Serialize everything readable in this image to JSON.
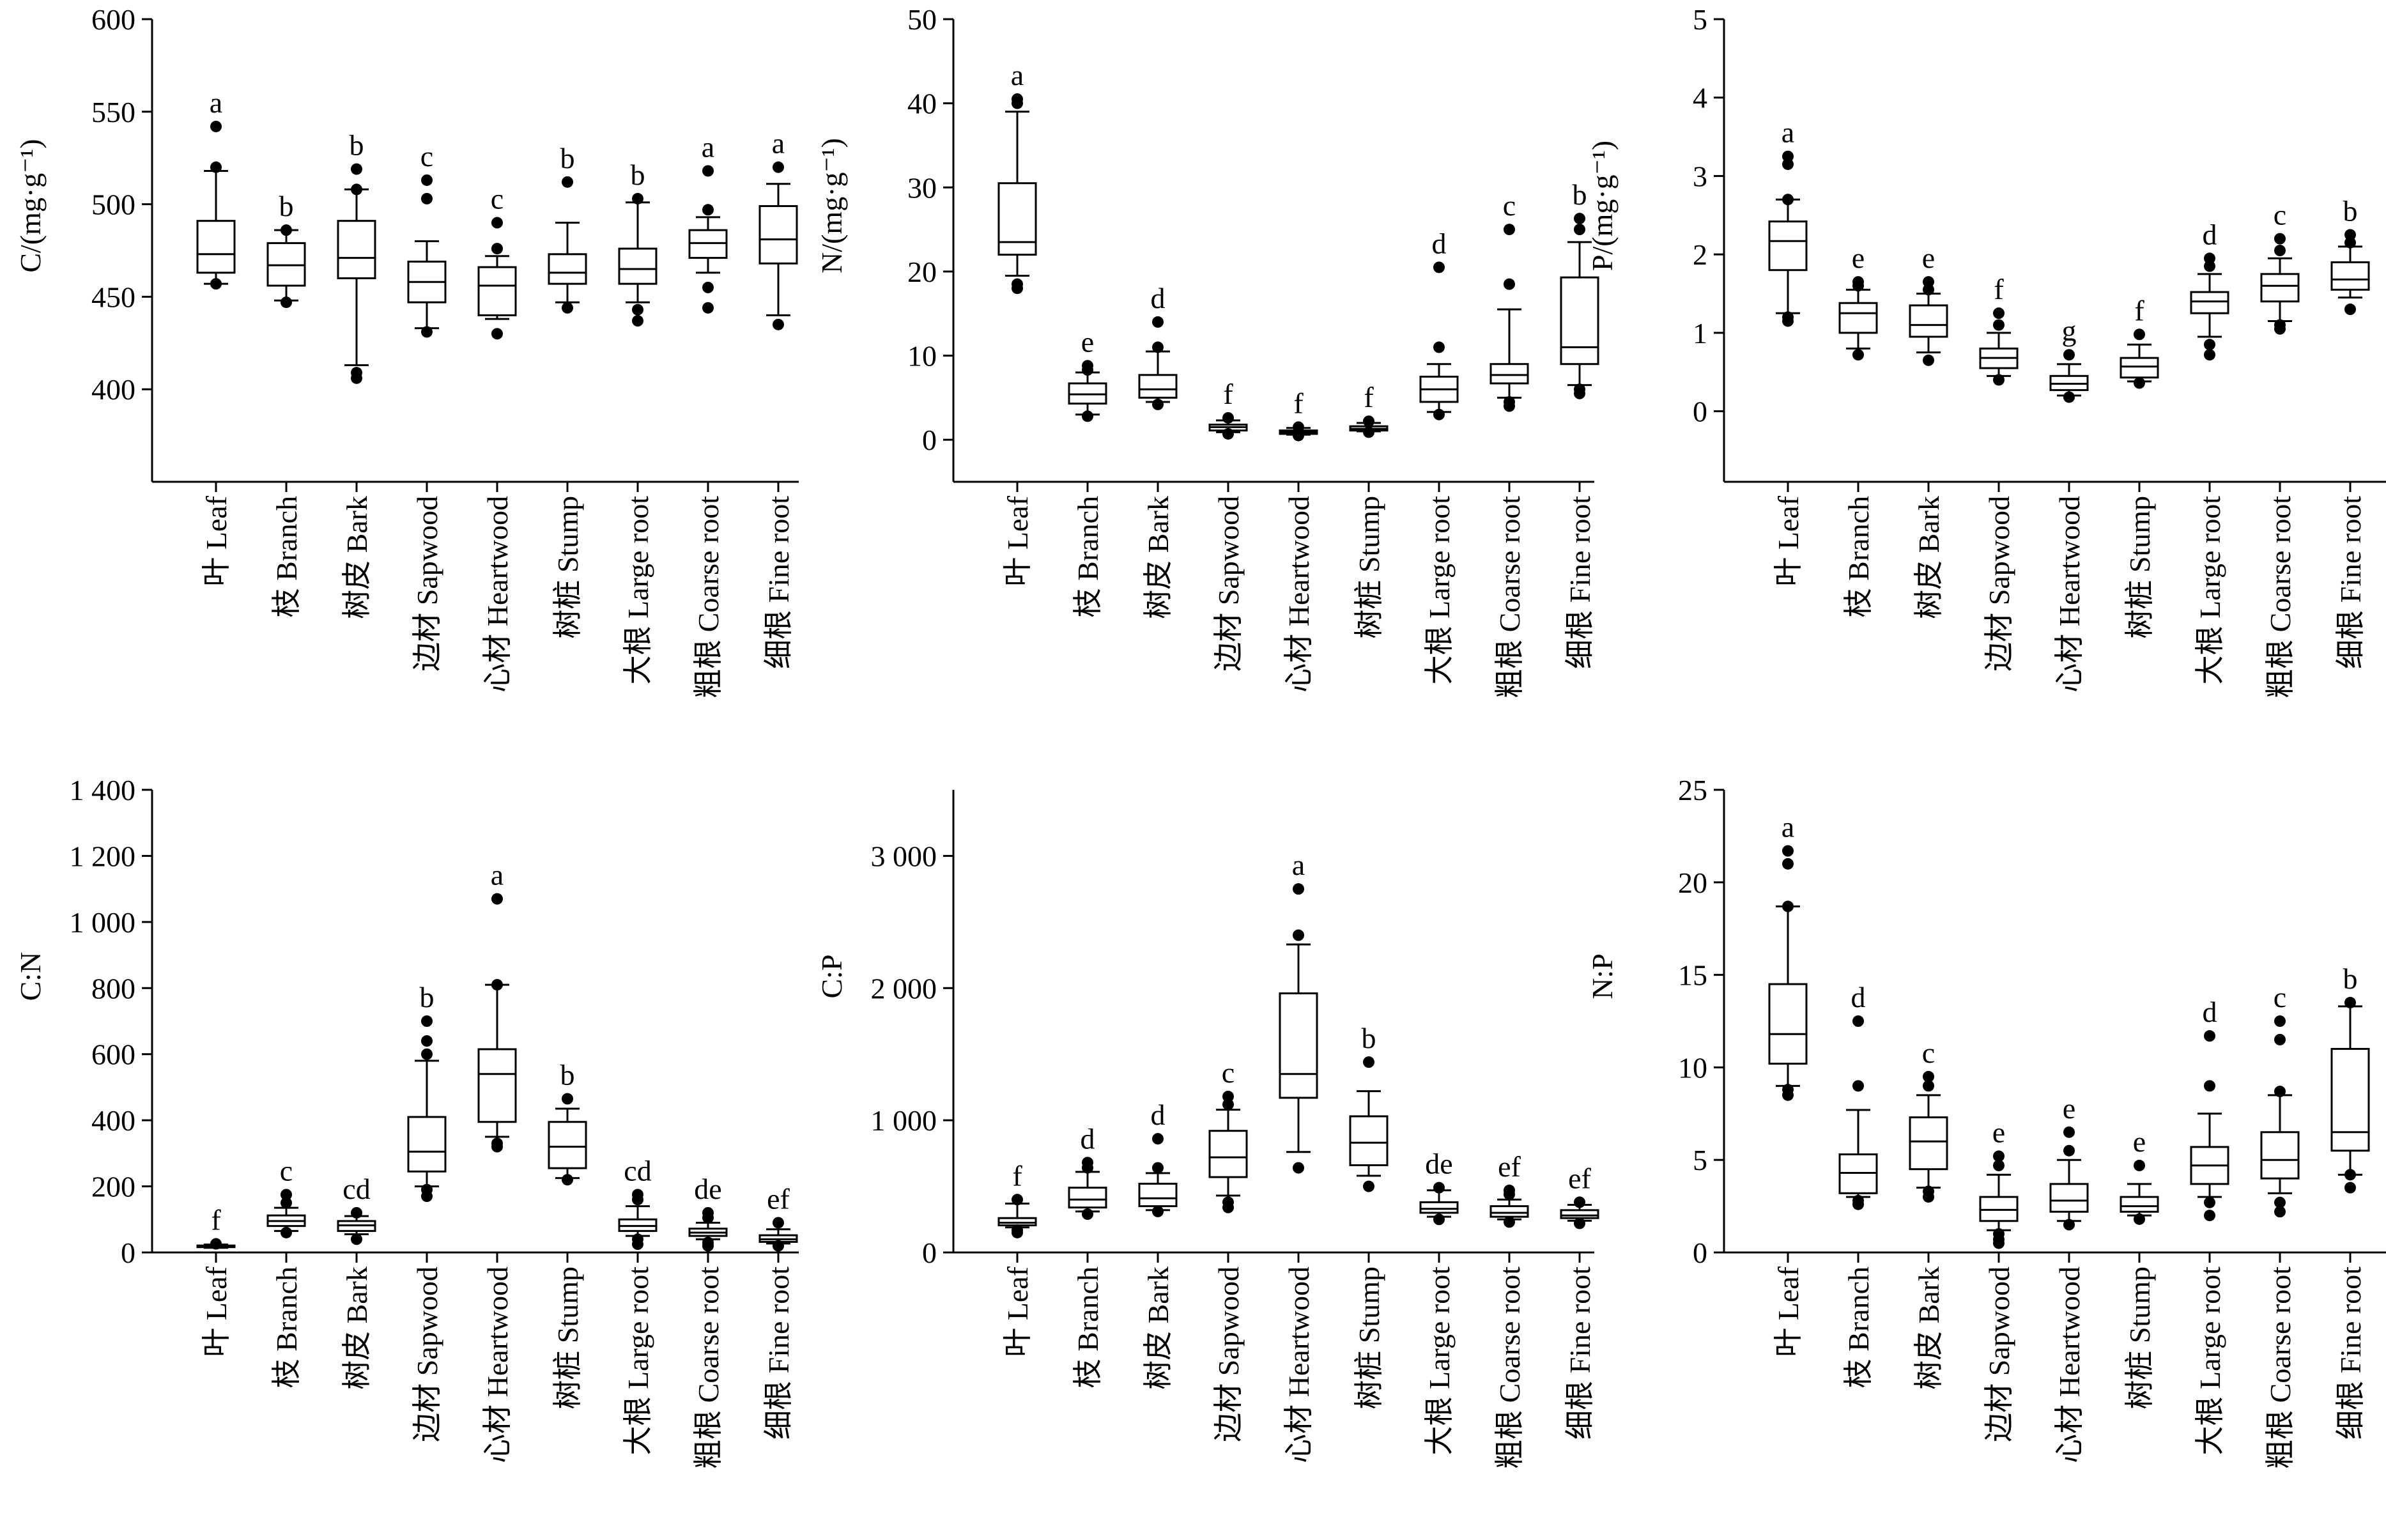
{
  "categories": [
    "叶 Leaf",
    "枝 Branch",
    "树皮 Bark",
    "边材 Sapwood",
    "心材 Heartwood",
    "树桩 Stump",
    "大根 Large root",
    "粗根 Coarse root",
    "细根 Fine root"
  ],
  "chart_data": [
    {
      "type": "box",
      "ylabel": "C/(mg·g⁻¹)",
      "ylim": [
        350,
        600
      ],
      "ticks": [
        400,
        450,
        500,
        550,
        600
      ],
      "tick_labels": [
        "400",
        "450",
        "500",
        "550",
        "600"
      ],
      "boxes": [
        {
          "category": "叶 Leaf",
          "whisker_low": 457,
          "q1": 463,
          "median": 473,
          "q3": 491,
          "whisker_high": 518,
          "outliers": [
            457,
            520,
            542
          ],
          "letter": "a"
        },
        {
          "category": "枝 Branch",
          "whisker_low": 448,
          "q1": 456,
          "median": 467,
          "q3": 479,
          "whisker_high": 486,
          "outliers": [
            447,
            486
          ],
          "letter": "b"
        },
        {
          "category": "树皮 Bark",
          "whisker_low": 413,
          "q1": 460,
          "median": 471,
          "q3": 491,
          "whisker_high": 508,
          "outliers": [
            406,
            409,
            508,
            519
          ],
          "letter": "b"
        },
        {
          "category": "边材 Sapwood",
          "whisker_low": 433,
          "q1": 447,
          "median": 458,
          "q3": 469,
          "whisker_high": 480,
          "outliers": [
            431,
            503,
            513
          ],
          "letter": "c"
        },
        {
          "category": "心材 Heartwood",
          "whisker_low": 438,
          "q1": 440,
          "median": 456,
          "q3": 466,
          "whisker_high": 472,
          "outliers": [
            430,
            476,
            490
          ],
          "letter": "c"
        },
        {
          "category": "树桩 Stump",
          "whisker_low": 447,
          "q1": 457,
          "median": 463,
          "q3": 473,
          "whisker_high": 490,
          "outliers": [
            444,
            512
          ],
          "letter": "b"
        },
        {
          "category": "大根 Large root",
          "whisker_low": 447,
          "q1": 457,
          "median": 465,
          "q3": 476,
          "whisker_high": 501,
          "outliers": [
            437,
            443,
            503
          ],
          "letter": "b"
        },
        {
          "category": "粗根 Coarse root",
          "whisker_low": 463,
          "q1": 471,
          "median": 479,
          "q3": 486,
          "whisker_high": 493,
          "outliers": [
            444,
            455,
            497,
            518
          ],
          "letter": "a"
        },
        {
          "category": "细根 Fine root",
          "whisker_low": 440,
          "q1": 468,
          "median": 481,
          "q3": 499,
          "whisker_high": 511,
          "outliers": [
            435,
            520
          ],
          "letter": "a"
        }
      ]
    },
    {
      "type": "box",
      "ylabel": "N/(mg·g⁻¹)",
      "ylim": [
        -5,
        50
      ],
      "ticks": [
        0,
        10,
        20,
        30,
        40,
        50
      ],
      "tick_labels": [
        "0",
        "10",
        "20",
        "30",
        "40",
        "50"
      ],
      "boxes": [
        {
          "category": "叶 Leaf",
          "whisker_low": 19.5,
          "q1": 22,
          "median": 23.5,
          "q3": 30.5,
          "whisker_high": 39,
          "outliers": [
            18,
            18.5,
            40,
            40.5
          ],
          "letter": "a"
        },
        {
          "category": "枝 Branch",
          "whisker_low": 3,
          "q1": 4.3,
          "median": 5.4,
          "q3": 6.7,
          "whisker_high": 8,
          "outliers": [
            2.8,
            8.3,
            8.8
          ],
          "letter": "e"
        },
        {
          "category": "树皮 Bark",
          "whisker_low": 4.5,
          "q1": 5,
          "median": 6,
          "q3": 7.7,
          "whisker_high": 10.5,
          "outliers": [
            4.2,
            11,
            14
          ],
          "letter": "d"
        },
        {
          "category": "边材 Sapwood",
          "whisker_low": 0.9,
          "q1": 1.1,
          "median": 1.5,
          "q3": 1.8,
          "whisker_high": 2.3,
          "outliers": [
            0.7,
            2.6
          ],
          "letter": "f"
        },
        {
          "category": "心材 Heartwood",
          "whisker_low": 0.6,
          "q1": 0.7,
          "median": 0.9,
          "q3": 1.1,
          "whisker_high": 1.4,
          "outliers": [
            0.5,
            1.5
          ],
          "letter": "f"
        },
        {
          "category": "树桩 Stump",
          "whisker_low": 1,
          "q1": 1.1,
          "median": 1.3,
          "q3": 1.6,
          "whisker_high": 2,
          "outliers": [
            0.9,
            2.2
          ],
          "letter": "f"
        },
        {
          "category": "大根 Large root",
          "whisker_low": 3.3,
          "q1": 4.5,
          "median": 6,
          "q3": 7.5,
          "whisker_high": 9,
          "outliers": [
            3,
            11,
            20.5
          ],
          "letter": "d"
        },
        {
          "category": "粗根 Coarse root",
          "whisker_low": 5,
          "q1": 6.7,
          "median": 7.7,
          "q3": 9,
          "whisker_high": 15.5,
          "outliers": [
            4,
            4.5,
            18.5,
            25
          ],
          "letter": "c"
        },
        {
          "category": "细根 Fine root",
          "whisker_low": 6.5,
          "q1": 9,
          "median": 11,
          "q3": 19.3,
          "whisker_high": 23.5,
          "outliers": [
            5.5,
            6,
            25,
            26.3
          ],
          "letter": "b"
        }
      ]
    },
    {
      "type": "box",
      "ylabel": "P/(mg·g⁻¹)",
      "ylim": [
        -0.9,
        5
      ],
      "ticks": [
        0,
        1,
        2,
        3,
        4,
        5
      ],
      "tick_labels": [
        "0",
        "1",
        "2",
        "3",
        "4",
        "5"
      ],
      "boxes": [
        {
          "category": "叶 Leaf",
          "whisker_low": 1.25,
          "q1": 1.8,
          "median": 2.17,
          "q3": 2.42,
          "whisker_high": 2.7,
          "outliers": [
            1.15,
            1.2,
            2.7,
            3.15,
            3.25
          ],
          "letter": "a"
        },
        {
          "category": "枝 Branch",
          "whisker_low": 0.8,
          "q1": 1,
          "median": 1.25,
          "q3": 1.38,
          "whisker_high": 1.55,
          "outliers": [
            0.72,
            1.6,
            1.65
          ],
          "letter": "e"
        },
        {
          "category": "树皮 Bark",
          "whisker_low": 0.75,
          "q1": 0.95,
          "median": 1.1,
          "q3": 1.35,
          "whisker_high": 1.5,
          "outliers": [
            0.65,
            1.55,
            1.65
          ],
          "letter": "e"
        },
        {
          "category": "边材 Sapwood",
          "whisker_low": 0.45,
          "q1": 0.55,
          "median": 0.68,
          "q3": 0.8,
          "whisker_high": 1,
          "outliers": [
            0.4,
            1.1,
            1.25
          ],
          "letter": "f"
        },
        {
          "category": "心材 Heartwood",
          "whisker_low": 0.2,
          "q1": 0.27,
          "median": 0.35,
          "q3": 0.45,
          "whisker_high": 0.6,
          "outliers": [
            0.18,
            0.72
          ],
          "letter": "g"
        },
        {
          "category": "树桩 Stump",
          "whisker_low": 0.38,
          "q1": 0.43,
          "median": 0.57,
          "q3": 0.68,
          "whisker_high": 0.85,
          "outliers": [
            0.36,
            0.98
          ],
          "letter": "f"
        },
        {
          "category": "大根 Large root",
          "whisker_low": 0.95,
          "q1": 1.25,
          "median": 1.4,
          "q3": 1.52,
          "whisker_high": 1.75,
          "outliers": [
            0.72,
            0.85,
            1.85,
            1.95
          ],
          "letter": "d"
        },
        {
          "category": "粗根 Coarse root",
          "whisker_low": 1.15,
          "q1": 1.4,
          "median": 1.6,
          "q3": 1.75,
          "whisker_high": 1.95,
          "outliers": [
            1.05,
            1.1,
            2.05,
            2.2
          ],
          "letter": "c"
        },
        {
          "category": "细根 Fine root",
          "whisker_low": 1.45,
          "q1": 1.55,
          "median": 1.68,
          "q3": 1.9,
          "whisker_high": 2.1,
          "outliers": [
            1.3,
            2.15,
            2.25
          ],
          "letter": "b"
        }
      ]
    },
    {
      "type": "box",
      "ylabel": "C:N",
      "ylim": [
        0,
        1400
      ],
      "ticks": [
        0,
        200,
        400,
        600,
        800,
        1000,
        1200,
        1400
      ],
      "tick_labels": [
        "0",
        "200",
        "400",
        "600",
        "800",
        "1 000",
        "1 200",
        "1 400"
      ],
      "boxes": [
        {
          "category": "叶 Leaf",
          "whisker_low": 14,
          "q1": 16,
          "median": 18,
          "q3": 21,
          "whisker_high": 24,
          "outliers": [
            26
          ],
          "letter": "f"
        },
        {
          "category": "枝 Branch",
          "whisker_low": 65,
          "q1": 80,
          "median": 95,
          "q3": 112,
          "whisker_high": 135,
          "outliers": [
            60,
            150,
            175
          ],
          "letter": "c"
        },
        {
          "category": "树皮 Bark",
          "whisker_low": 55,
          "q1": 65,
          "median": 82,
          "q3": 95,
          "whisker_high": 110,
          "outliers": [
            40,
            120
          ],
          "letter": "cd"
        },
        {
          "category": "边材 Sapwood",
          "whisker_low": 200,
          "q1": 245,
          "median": 305,
          "q3": 410,
          "whisker_high": 580,
          "outliers": [
            170,
            190,
            600,
            640,
            700
          ],
          "letter": "b"
        },
        {
          "category": "心材 Heartwood",
          "whisker_low": 350,
          "q1": 395,
          "median": 540,
          "q3": 615,
          "whisker_high": 810,
          "outliers": [
            320,
            330,
            810,
            1070
          ],
          "letter": "a"
        },
        {
          "category": "树桩 Stump",
          "whisker_low": 225,
          "q1": 255,
          "median": 320,
          "q3": 395,
          "whisker_high": 435,
          "outliers": [
            220,
            465
          ],
          "letter": "b"
        },
        {
          "category": "大根 Large root",
          "whisker_low": 50,
          "q1": 65,
          "median": 80,
          "q3": 100,
          "whisker_high": 140,
          "outliers": [
            25,
            40,
            160,
            175
          ],
          "letter": "cd"
        },
        {
          "category": "粗根 Coarse root",
          "whisker_low": 40,
          "q1": 50,
          "median": 60,
          "q3": 72,
          "whisker_high": 90,
          "outliers": [
            20,
            30,
            105,
            120
          ],
          "letter": "de"
        },
        {
          "category": "细根 Fine root",
          "whisker_low": 27,
          "q1": 32,
          "median": 40,
          "q3": 52,
          "whisker_high": 70,
          "outliers": [
            20,
            90
          ],
          "letter": "ef"
        }
      ]
    },
    {
      "type": "box",
      "ylabel": "C:P",
      "ylim": [
        0,
        3500
      ],
      "ticks": [
        0,
        1000,
        2000,
        3000
      ],
      "tick_labels": [
        "0",
        "1 000",
        "2 000",
        "3 000"
      ],
      "boxes": [
        {
          "category": "叶 Leaf",
          "whisker_low": 190,
          "q1": 205,
          "median": 225,
          "q3": 260,
          "whisker_high": 370,
          "outliers": [
            150,
            170,
            400
          ],
          "letter": "f"
        },
        {
          "category": "枝 Branch",
          "whisker_low": 310,
          "q1": 340,
          "median": 400,
          "q3": 490,
          "whisker_high": 610,
          "outliers": [
            290,
            640,
            680
          ],
          "letter": "d"
        },
        {
          "category": "树皮 Bark",
          "whisker_low": 320,
          "q1": 350,
          "median": 410,
          "q3": 520,
          "whisker_high": 600,
          "outliers": [
            310,
            640,
            860
          ],
          "letter": "d"
        },
        {
          "category": "边材 Sapwood",
          "whisker_low": 430,
          "q1": 570,
          "median": 720,
          "q3": 920,
          "whisker_high": 1080,
          "outliers": [
            340,
            380,
            1120,
            1180
          ],
          "letter": "c"
        },
        {
          "category": "心材 Heartwood",
          "whisker_low": 760,
          "q1": 1170,
          "median": 1350,
          "q3": 1960,
          "whisker_high": 2330,
          "outliers": [
            640,
            2400,
            2750
          ],
          "letter": "a"
        },
        {
          "category": "树桩 Stump",
          "whisker_low": 580,
          "q1": 660,
          "median": 830,
          "q3": 1030,
          "whisker_high": 1220,
          "outliers": [
            500,
            1440
          ],
          "letter": "b"
        },
        {
          "category": "大根 Large root",
          "whisker_low": 270,
          "q1": 300,
          "median": 330,
          "q3": 380,
          "whisker_high": 470,
          "outliers": [
            250,
            490
          ],
          "letter": "de"
        },
        {
          "category": "粗根 Coarse root",
          "whisker_low": 250,
          "q1": 270,
          "median": 300,
          "q3": 350,
          "whisker_high": 400,
          "outliers": [
            230,
            440,
            470
          ],
          "letter": "ef"
        },
        {
          "category": "细根 Fine root",
          "whisker_low": 240,
          "q1": 260,
          "median": 280,
          "q3": 320,
          "whisker_high": 360,
          "outliers": [
            220,
            380
          ],
          "letter": "ef"
        }
      ]
    },
    {
      "type": "box",
      "ylabel": "N:P",
      "ylim": [
        0,
        25
      ],
      "ticks": [
        0,
        5,
        10,
        15,
        20,
        25
      ],
      "tick_labels": [
        "0",
        "5",
        "10",
        "15",
        "20",
        "25"
      ],
      "boxes": [
        {
          "category": "叶 Leaf",
          "whisker_low": 9,
          "q1": 10.2,
          "median": 11.8,
          "q3": 14.5,
          "whisker_high": 18.7,
          "outliers": [
            8.5,
            8.8,
            18.7,
            21,
            21.7
          ],
          "letter": "a"
        },
        {
          "category": "枝 Branch",
          "whisker_low": 3,
          "q1": 3.2,
          "median": 4.3,
          "q3": 5.3,
          "whisker_high": 7.7,
          "outliers": [
            2.6,
            2.8,
            9,
            12.5
          ],
          "letter": "d"
        },
        {
          "category": "树皮 Bark",
          "whisker_low": 3.5,
          "q1": 4.5,
          "median": 6,
          "q3": 7.3,
          "whisker_high": 8.5,
          "outliers": [
            3,
            3.3,
            9,
            9.5
          ],
          "letter": "c"
        },
        {
          "category": "边材 Sapwood",
          "whisker_low": 1.2,
          "q1": 1.7,
          "median": 2.3,
          "q3": 3,
          "whisker_high": 4.2,
          "outliers": [
            0.5,
            0.7,
            1,
            4.7,
            5.2
          ],
          "letter": "e"
        },
        {
          "category": "心材 Heartwood",
          "whisker_low": 1.7,
          "q1": 2.2,
          "median": 2.8,
          "q3": 3.7,
          "whisker_high": 5,
          "outliers": [
            1.5,
            5.5,
            6.5
          ],
          "letter": "e"
        },
        {
          "category": "树桩 Stump",
          "whisker_low": 2,
          "q1": 2.2,
          "median": 2.5,
          "q3": 3,
          "whisker_high": 3.7,
          "outliers": [
            1.8,
            4.7
          ],
          "letter": "e"
        },
        {
          "category": "大根 Large root",
          "whisker_low": 3,
          "q1": 3.7,
          "median": 4.7,
          "q3": 5.7,
          "whisker_high": 7.5,
          "outliers": [
            2,
            2.7,
            9,
            11.7
          ],
          "letter": "d"
        },
        {
          "category": "粗根 Coarse root",
          "whisker_low": 3.2,
          "q1": 4,
          "median": 5,
          "q3": 6.5,
          "whisker_high": 8.5,
          "outliers": [
            2.2,
            2.7,
            8.7,
            11.5,
            12.5
          ],
          "letter": "c"
        },
        {
          "category": "细根 Fine root",
          "whisker_low": 4.2,
          "q1": 5.5,
          "median": 6.5,
          "q3": 11,
          "whisker_high": 13.3,
          "outliers": [
            3.5,
            4.2,
            13.5
          ],
          "letter": "b"
        }
      ]
    }
  ]
}
